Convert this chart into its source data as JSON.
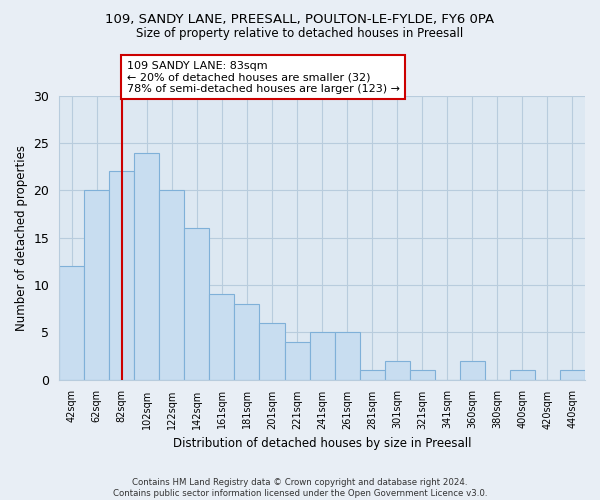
{
  "title": "109, SANDY LANE, PREESALL, POULTON-LE-FYLDE, FY6 0PA",
  "subtitle": "Size of property relative to detached houses in Preesall",
  "xlabel": "Distribution of detached houses by size in Preesall",
  "ylabel": "Number of detached properties",
  "bin_labels": [
    "42sqm",
    "62sqm",
    "82sqm",
    "102sqm",
    "122sqm",
    "142sqm",
    "161sqm",
    "181sqm",
    "201sqm",
    "221sqm",
    "241sqm",
    "261sqm",
    "281sqm",
    "301sqm",
    "321sqm",
    "341sqm",
    "360sqm",
    "380sqm",
    "400sqm",
    "420sqm",
    "440sqm"
  ],
  "bar_values": [
    12,
    20,
    22,
    24,
    20,
    16,
    9,
    8,
    6,
    4,
    5,
    5,
    1,
    2,
    1,
    0,
    2,
    0,
    1,
    0,
    1
  ],
  "bar_color": "#c8ddf0",
  "bar_edge_color": "#7fb0d8",
  "vline_x_index": 2,
  "vline_color": "#cc0000",
  "annotation_title": "109 SANDY LANE: 83sqm",
  "annotation_line1": "← 20% of detached houses are smaller (32)",
  "annotation_line2": "78% of semi-detached houses are larger (123) →",
  "annotation_box_edge": "#cc0000",
  "ylim": [
    0,
    30
  ],
  "yticks": [
    0,
    5,
    10,
    15,
    20,
    25,
    30
  ],
  "footer_line1": "Contains HM Land Registry data © Crown copyright and database right 2024.",
  "footer_line2": "Contains public sector information licensed under the Open Government Licence v3.0.",
  "bg_color": "#e8eef5",
  "plot_bg_color": "#dde8f2",
  "grid_color": "#b8ccdd"
}
